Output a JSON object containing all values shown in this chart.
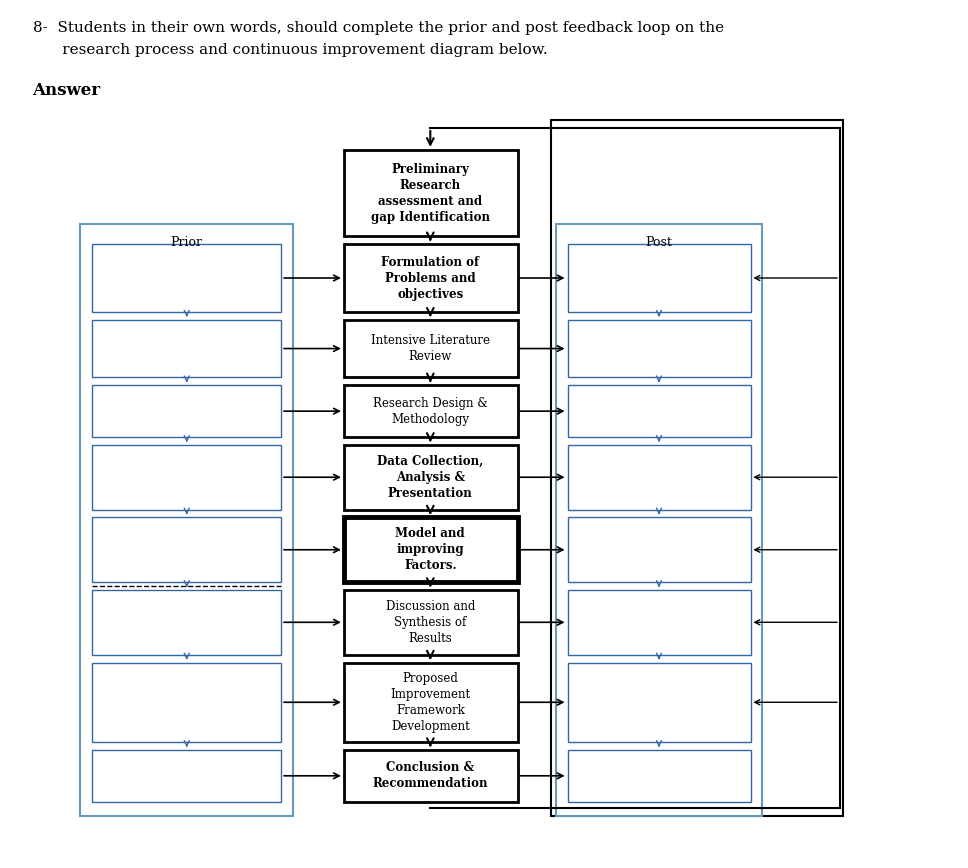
{
  "title_line1": "8-  Students in their own words, should complete the prior and post feedback loop on the",
  "title_line2": "      research process and continuous improvement diagram below.",
  "answer_label": "Answer",
  "prior_label": "Prior",
  "post_label": "Post",
  "center_boxes": [
    {
      "label": "Preliminary\nResearch\nassessment and\ngap Identification",
      "bold": true,
      "lw": 2.0
    },
    {
      "label": "Formulation of\nProblems and\nobjectives",
      "bold": true,
      "lw": 2.0
    },
    {
      "label": "Intensive Literature\nReview",
      "bold": false,
      "lw": 2.0
    },
    {
      "label": "Research Design &\nMethodology",
      "bold": false,
      "lw": 2.0
    },
    {
      "label": "Data Collection,\nAnalysis &\nPresentation",
      "bold": true,
      "lw": 2.0
    },
    {
      "label": "Model and\nimproving\nFactors.",
      "bold": true,
      "lw": 3.5
    },
    {
      "label": "Discussion and\nSynthesis of\nResults",
      "bold": false,
      "lw": 2.0
    },
    {
      "label": "Proposed\nImprovement\nFramework\nDevelopment",
      "bold": false,
      "lw": 2.0
    },
    {
      "label": "Conclusion &\nRecommendation",
      "bold": true,
      "lw": 2.0
    }
  ],
  "bg_color": "#ffffff",
  "fig_width": 9.68,
  "fig_height": 8.68
}
